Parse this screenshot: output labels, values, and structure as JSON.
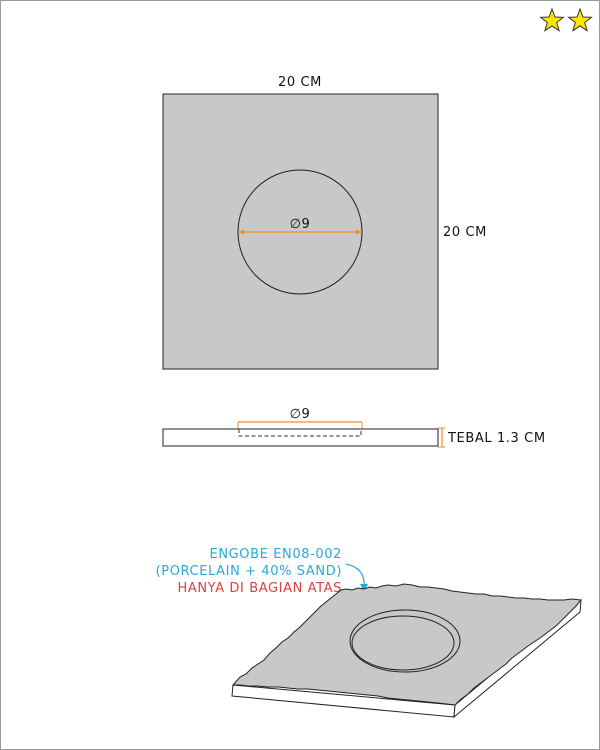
{
  "rating": {
    "stars": 2,
    "star_color": "#ffe600"
  },
  "top_view": {
    "width_label": "20 CM",
    "height_label": "20 CM",
    "hole_label": "∅9",
    "fill_color": "#c8c8c8",
    "dimension_color": "#f08c28"
  },
  "side_view": {
    "hole_label": "∅9",
    "thickness_label": "TEBAL 1.3 CM"
  },
  "perspective_view": {
    "note_line_1": "ENGOBE EN08-002",
    "note_line_2": "(PORCELAIN + 40% SAND)",
    "note_line_3": "HANYA DI BAGIAN ATAS",
    "note_color": "#2aa8d8",
    "warning_color": "#e04040"
  }
}
